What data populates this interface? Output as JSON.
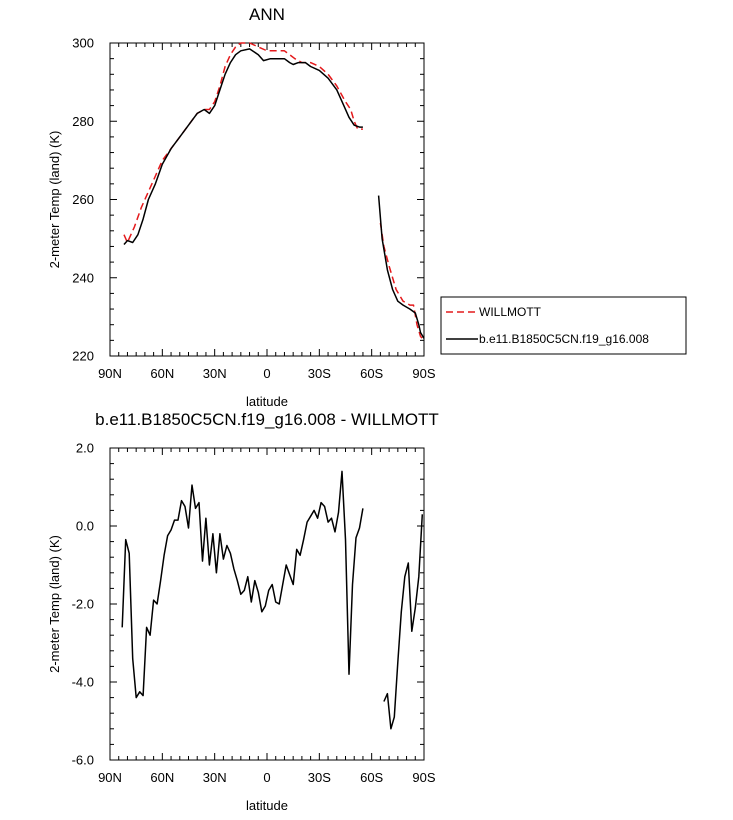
{
  "chart_data": [
    {
      "type": "line",
      "title": "ANN",
      "xlabel": "latitude",
      "ylabel": "2-meter Temp (land) (K)",
      "xlim": [
        90,
        -90
      ],
      "ylim": [
        220,
        300
      ],
      "x_ticks": [
        90,
        60,
        30,
        0,
        -30,
        -60,
        -90
      ],
      "x_tick_labels": [
        "90N",
        "60N",
        "30N",
        "0",
        "30S",
        "60S",
        "90S"
      ],
      "y_ticks": [
        220,
        240,
        260,
        280,
        300
      ],
      "y_tick_labels": [
        "220",
        "240",
        "260",
        "280",
        "300"
      ],
      "legend_position": "right",
      "series": [
        {
          "name": "WILLMOTT",
          "color": "#e41a1c",
          "style": "dashed",
          "segments": [
            [
              [
                82,
                251
              ],
              [
                80,
                249
              ],
              [
                76,
                253
              ],
              [
                72,
                258
              ],
              [
                68,
                262
              ],
              [
                64,
                266
              ],
              [
                60,
                270
              ],
              [
                55,
                273
              ],
              [
                50,
                276
              ],
              [
                45,
                279
              ],
              [
                40,
                282
              ],
              [
                36,
                283
              ],
              [
                33,
                283
              ],
              [
                30,
                285
              ],
              [
                27,
                289
              ],
              [
                24,
                294
              ],
              [
                21,
                297
              ],
              [
                18,
                299
              ],
              [
                15,
                300
              ],
              [
                10,
                300
              ],
              [
                5,
                299
              ],
              [
                0,
                298
              ],
              [
                -5,
                298
              ],
              [
                -10,
                298
              ],
              [
                -13,
                297
              ],
              [
                -16,
                296
              ],
              [
                -20,
                295
              ],
              [
                -25,
                295
              ],
              [
                -30,
                294
              ],
              [
                -35,
                292
              ],
              [
                -40,
                289
              ],
              [
                -45,
                285
              ],
              [
                -48,
                283
              ],
              [
                -50,
                280
              ],
              [
                -52,
                278
              ],
              [
                -55,
                278
              ]
            ],
            [
              [
                -65,
                254
              ],
              [
                -67,
                248
              ],
              [
                -70,
                243
              ],
              [
                -74,
                237
              ],
              [
                -78,
                234
              ],
              [
                -82,
                233
              ],
              [
                -84,
                233
              ],
              [
                -86,
                228
              ],
              [
                -88,
                225
              ],
              [
                -90,
                224
              ]
            ]
          ]
        },
        {
          "name": "b.e11.B1850C5CN.f19_g16.008",
          "color": "#000000",
          "style": "solid",
          "segments": [
            [
              [
                82,
                248.5
              ],
              [
                80,
                249.5
              ],
              [
                77,
                249
              ],
              [
                74,
                251
              ],
              [
                71,
                255
              ],
              [
                68,
                260
              ],
              [
                64,
                264
              ],
              [
                60,
                269
              ],
              [
                55,
                273
              ],
              [
                50,
                276
              ],
              [
                45,
                279
              ],
              [
                40,
                282
              ],
              [
                36,
                283
              ],
              [
                33,
                282
              ],
              [
                30,
                284
              ],
              [
                27,
                288
              ],
              [
                24,
                292
              ],
              [
                21,
                295
              ],
              [
                18,
                297
              ],
              [
                15,
                298
              ],
              [
                10,
                298.5
              ],
              [
                5,
                297
              ],
              [
                2,
                295.5
              ],
              [
                -2,
                296
              ],
              [
                -5,
                296
              ],
              [
                -10,
                296
              ],
              [
                -13,
                295
              ],
              [
                -15,
                294.5
              ],
              [
                -18,
                295
              ],
              [
                -22,
                295
              ],
              [
                -25,
                294
              ],
              [
                -30,
                293
              ],
              [
                -35,
                291
              ],
              [
                -40,
                288
              ],
              [
                -44,
                284
              ],
              [
                -47,
                281
              ],
              [
                -50,
                279
              ],
              [
                -53,
                278.5
              ],
              [
                -55,
                278.5
              ]
            ],
            [
              [
                -64,
                261
              ],
              [
                -66,
                250
              ],
              [
                -69,
                242
              ],
              [
                -72,
                237
              ],
              [
                -75,
                234
              ],
              [
                -78,
                233
              ],
              [
                -82,
                232
              ],
              [
                -85,
                231
              ],
              [
                -87,
                228
              ],
              [
                -88,
                226
              ],
              [
                -90,
                224.5
              ]
            ]
          ]
        }
      ]
    },
    {
      "type": "line",
      "title": "b.e11.B1850C5CN.f19_g16.008 - WILLMOTT",
      "xlabel": "latitude",
      "ylabel": "2-meter Temp (land) (K)",
      "xlim": [
        90,
        -90
      ],
      "ylim": [
        -6,
        2
      ],
      "x_ticks": [
        90,
        60,
        30,
        0,
        -30,
        -60,
        -90
      ],
      "x_tick_labels": [
        "90N",
        "60N",
        "30N",
        "0",
        "30S",
        "60S",
        "90S"
      ],
      "y_ticks": [
        -6,
        -4,
        -2,
        0,
        2
      ],
      "y_tick_labels": [
        "-6.0",
        "-4.0",
        "-2.0",
        "0.0",
        "2.0"
      ],
      "series": [
        {
          "color": "#000000",
          "style": "solid",
          "segments": [
            [
              [
                83,
                -2.6
              ],
              [
                81,
                -0.35
              ],
              [
                79,
                -0.7
              ],
              [
                77,
                -3.4
              ],
              [
                75,
                -4.4
              ],
              [
                73,
                -4.25
              ],
              [
                71,
                -4.35
              ],
              [
                69,
                -2.6
              ],
              [
                67,
                -2.8
              ],
              [
                65,
                -1.9
              ],
              [
                63,
                -2.0
              ],
              [
                61,
                -1.4
              ],
              [
                59,
                -0.75
              ],
              [
                57,
                -0.25
              ],
              [
                55,
                -0.1
              ],
              [
                53,
                0.15
              ],
              [
                51,
                0.15
              ],
              [
                49,
                0.65
              ],
              [
                47,
                0.5
              ],
              [
                45,
                -0.05
              ],
              [
                43,
                1.05
              ],
              [
                41,
                0.45
              ],
              [
                39,
                0.6
              ],
              [
                37,
                -0.9
              ],
              [
                35,
                0.2
              ],
              [
                33,
                -1.0
              ],
              [
                31,
                -0.2
              ],
              [
                29,
                -1.2
              ],
              [
                27,
                -0.2
              ],
              [
                25,
                -0.85
              ],
              [
                23,
                -0.5
              ],
              [
                21,
                -0.7
              ],
              [
                19,
                -1.1
              ],
              [
                17,
                -1.4
              ],
              [
                15,
                -1.75
              ],
              [
                13,
                -1.65
              ],
              [
                11,
                -1.3
              ],
              [
                9,
                -1.95
              ],
              [
                7,
                -1.4
              ],
              [
                5,
                -1.7
              ],
              [
                3,
                -2.2
              ],
              [
                1,
                -2.05
              ],
              [
                -1,
                -1.65
              ],
              [
                -3,
                -1.5
              ],
              [
                -5,
                -1.95
              ],
              [
                -7,
                -2.0
              ],
              [
                -9,
                -1.5
              ],
              [
                -11,
                -1.0
              ],
              [
                -13,
                -1.25
              ],
              [
                -15,
                -1.5
              ],
              [
                -17,
                -0.6
              ],
              [
                -19,
                -0.75
              ],
              [
                -21,
                -0.35
              ],
              [
                -23,
                0.1
              ],
              [
                -25,
                0.25
              ],
              [
                -27,
                0.4
              ],
              [
                -29,
                0.2
              ],
              [
                -31,
                0.6
              ],
              [
                -33,
                0.5
              ],
              [
                -35,
                0.1
              ],
              [
                -37,
                0.2
              ],
              [
                -39,
                -0.15
              ],
              [
                -41,
                0.35
              ],
              [
                -43,
                1.4
              ],
              [
                -45,
                -0.35
              ],
              [
                -47,
                -3.8
              ],
              [
                -49,
                -1.5
              ],
              [
                -51,
                -0.3
              ],
              [
                -53,
                -0.05
              ],
              [
                -55,
                0.45
              ]
            ],
            [
              [
                -67,
                -4.5
              ],
              [
                -69,
                -4.3
              ],
              [
                -71,
                -5.2
              ],
              [
                -73,
                -4.9
              ],
              [
                -75,
                -3.5
              ],
              [
                -77,
                -2.2
              ],
              [
                -79,
                -1.3
              ],
              [
                -81,
                -0.95
              ],
              [
                -83,
                -2.7
              ],
              [
                -85,
                -2.1
              ],
              [
                -87,
                -1.3
              ],
              [
                -89,
                0.3
              ]
            ]
          ]
        }
      ]
    }
  ]
}
